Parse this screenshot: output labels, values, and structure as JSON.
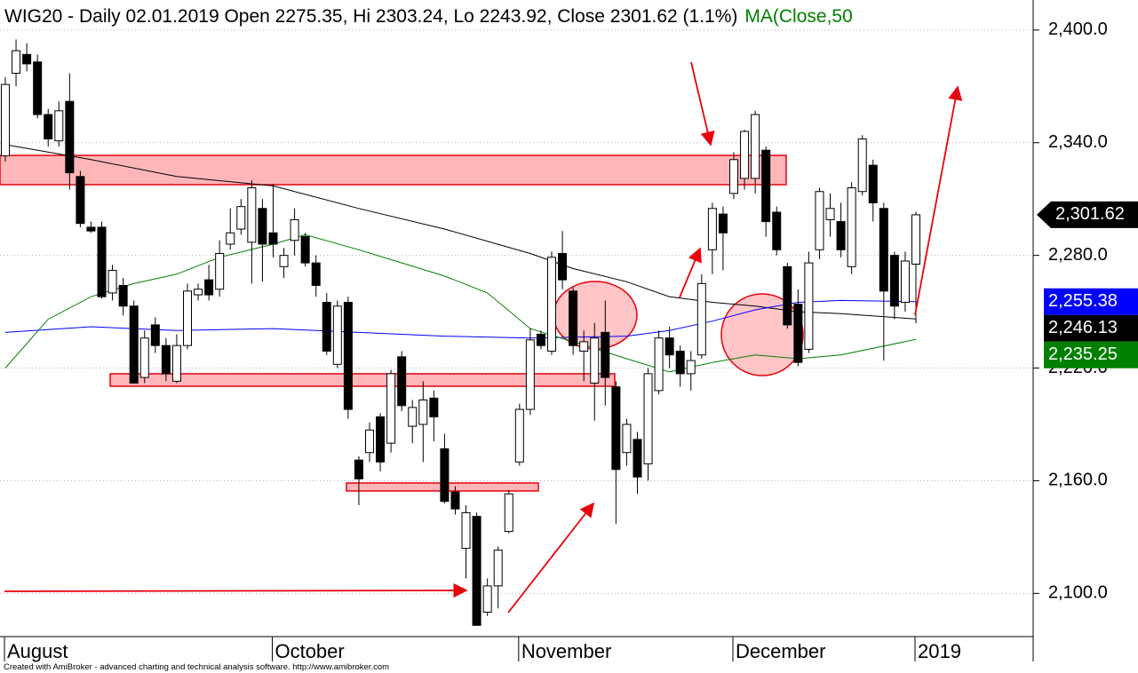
{
  "chart_data": {
    "type": "candlestick",
    "title": "WIG20 - Daily 02.01.2019 Open 2275.35, Hi 2303.24, Lo 2243.92, Close 2301.62 (1.1%)",
    "title_ma": "MA(Close,50",
    "footer": "Created with AmiBroker - advanced charting and technical analysis software. http://www.amibroker.com",
    "ylim": [
      2077,
      2416
    ],
    "yticks": [
      {
        "value": 2100,
        "label": "2,100.0"
      },
      {
        "value": 2160,
        "label": "2,160.0"
      },
      {
        "value": 2220,
        "label": "2,220.0"
      },
      {
        "value": 2280,
        "label": "2,280.0"
      },
      {
        "value": 2340,
        "label": "2,340.0"
      },
      {
        "value": 2400,
        "label": "2,400.0"
      }
    ],
    "grid": true,
    "categories": [
      "August",
      null,
      null,
      null,
      null,
      null,
      null,
      null,
      null,
      null,
      null,
      null,
      null,
      null,
      null,
      null,
      null,
      null,
      null,
      null,
      null,
      null,
      null,
      null,
      null,
      "October",
      null,
      null,
      null,
      null,
      null,
      null,
      null,
      null,
      null,
      null,
      null,
      null,
      null,
      null,
      null,
      null,
      null,
      null,
      null,
      null,
      null,
      null,
      "November",
      null,
      null,
      null,
      null,
      null,
      null,
      null,
      null,
      null,
      null,
      null,
      null,
      null,
      null,
      null,
      null,
      null,
      null,
      null,
      "December",
      null,
      null,
      null,
      null,
      null,
      null,
      null,
      null,
      null,
      null,
      null,
      null,
      null,
      null,
      null,
      null,
      "2019"
    ],
    "open": [
      2333,
      2377,
      2387,
      2383,
      2355,
      2341,
      2362,
      2322,
      2295,
      2295,
      2260,
      2264,
      2253,
      2215,
      2243,
      2232,
      2213,
      2232,
      2259,
      2267,
      2262,
      2286,
      2294,
      2287,
      2305,
      2292,
      2274,
      2288,
      2290,
      2276,
      2255,
      2222,
      2255,
      2171,
      2175,
      2194,
      2180,
      2226,
      2189,
      2190,
      2204,
      2177,
      2154,
      2124,
      2141,
      2090,
      2104,
      2133,
      2170,
      2198,
      2238,
      2229,
      2281,
      2261,
      2229,
      2212,
      2239,
      2210,
      2175,
      2182,
      2169,
      2208,
      2236,
      2229,
      2217,
      2227,
      2283,
      2302,
      2313,
      2321,
      2321,
      2336,
      2303,
      2274,
      2254,
      2230,
      2283,
      2299,
      2298,
      2274,
      2314,
      2328,
      2305,
      2280,
      2255,
      2275.35
    ],
    "high": [
      2375,
      2395,
      2393,
      2387,
      2358,
      2362,
      2377,
      2325,
      2298,
      2298,
      2275,
      2268,
      2256,
      2240,
      2247,
      2236,
      2238,
      2265,
      2265,
      2275,
      2288,
      2305,
      2310,
      2320,
      2310,
      2318,
      2284,
      2305,
      2292,
      2280,
      2260,
      2256,
      2258,
      2173,
      2191,
      2196,
      2219,
      2229,
      2203,
      2213,
      2208,
      2185,
      2157,
      2147,
      2143,
      2108,
      2125,
      2155,
      2201,
      2241,
      2240,
      2282,
      2293,
      2263,
      2240,
      2244,
      2256,
      2213,
      2193,
      2186,
      2220,
      2240,
      2242,
      2232,
      2229,
      2270,
      2308,
      2306,
      2335,
      2347,
      2357,
      2338,
      2306,
      2276,
      2262,
      2282,
      2316,
      2313,
      2308,
      2319,
      2344,
      2331,
      2308,
      2282,
      2282,
      2303.24
    ],
    "low": [
      2330,
      2370,
      2378,
      2353,
      2338,
      2338,
      2315,
      2295,
      2292,
      2257,
      2256,
      2248,
      2212,
      2212,
      2228,
      2213,
      2212,
      2230,
      2256,
      2256,
      2258,
      2283,
      2291,
      2265,
      2266,
      2279,
      2268,
      2280,
      2274,
      2258,
      2227,
      2220,
      2193,
      2147,
      2170,
      2165,
      2175,
      2197,
      2180,
      2170,
      2181,
      2148,
      2142,
      2108,
      2083,
      2088,
      2092,
      2132,
      2168,
      2195,
      2230,
      2227,
      2262,
      2227,
      2213,
      2192,
      2200,
      2137,
      2168,
      2153,
      2160,
      2206,
      2220,
      2210,
      2208,
      2225,
      2270,
      2272,
      2310,
      2315,
      2313,
      2290,
      2280,
      2241,
      2221,
      2228,
      2278,
      2290,
      2279,
      2270,
      2312,
      2298,
      2224,
      2246,
      2250,
      2243.92
    ],
    "close": [
      2371,
      2389,
      2382,
      2355,
      2342,
      2357,
      2324,
      2297,
      2293,
      2258,
      2272,
      2253,
      2212,
      2236,
      2232,
      2217,
      2232,
      2261,
      2262,
      2259,
      2281,
      2292,
      2306,
      2316,
      2286,
      2286,
      2280,
      2299,
      2276,
      2264,
      2229,
      2253,
      2198,
      2161,
      2187,
      2170,
      2217,
      2200,
      2199,
      2203,
      2194,
      2149,
      2145,
      2143,
      2083,
      2104,
      2123,
      2153,
      2198,
      2235,
      2232,
      2279,
      2267,
      2232,
      2234,
      2236,
      2215,
      2166,
      2190,
      2162,
      2217,
      2236,
      2227,
      2217,
      2224,
      2265,
      2305,
      2292,
      2331,
      2346,
      2355,
      2298,
      2283,
      2243,
      2223,
      2276,
      2314,
      2305,
      2283,
      2316,
      2342,
      2308,
      2261,
      2253,
      2277,
      2301.62
    ],
    "close_label": "2,301.62",
    "close_color": "#000000",
    "up_color": "#ffffff",
    "down_color": "#000000",
    "series": [
      {
        "color": "#000000",
        "x": [
          0,
          8,
          16,
          25,
          33,
          41,
          49,
          53,
          58,
          62,
          66,
          70,
          74,
          78,
          85
        ],
        "values": [
          2339,
          2331,
          2322,
          2317,
          2305,
          2294,
          2281,
          2273,
          2266,
          2258,
          2255,
          2253,
          2250,
          2249,
          2246.13
        ],
        "last_label": "2,246.13"
      },
      {
        "color": "#0000ff",
        "x": [
          0,
          8,
          16,
          25,
          33,
          41,
          49,
          58,
          62,
          66,
          70,
          74,
          78,
          85
        ],
        "values": [
          2239,
          2242,
          2240,
          2241,
          2239,
          2237,
          2236,
          2237,
          2240,
          2245,
          2251,
          2255,
          2256,
          2255.38
        ],
        "last_label": "2,255.38"
      },
      {
        "color": "#008000",
        "x": [
          0,
          4,
          8,
          12,
          16,
          20,
          25,
          28,
          33,
          37,
          41,
          45,
          49,
          53,
          58,
          62,
          66,
          70,
          74,
          78,
          85
        ],
        "values": [
          2220,
          2246,
          2258,
          2265,
          2270,
          2279,
          2286,
          2291,
          2283,
          2276,
          2269,
          2260,
          2241,
          2234,
          2225,
          2218,
          2223,
          2227,
          2225,
          2227,
          2235.25
        ],
        "last_label": "2,235.25"
      }
    ]
  }
}
